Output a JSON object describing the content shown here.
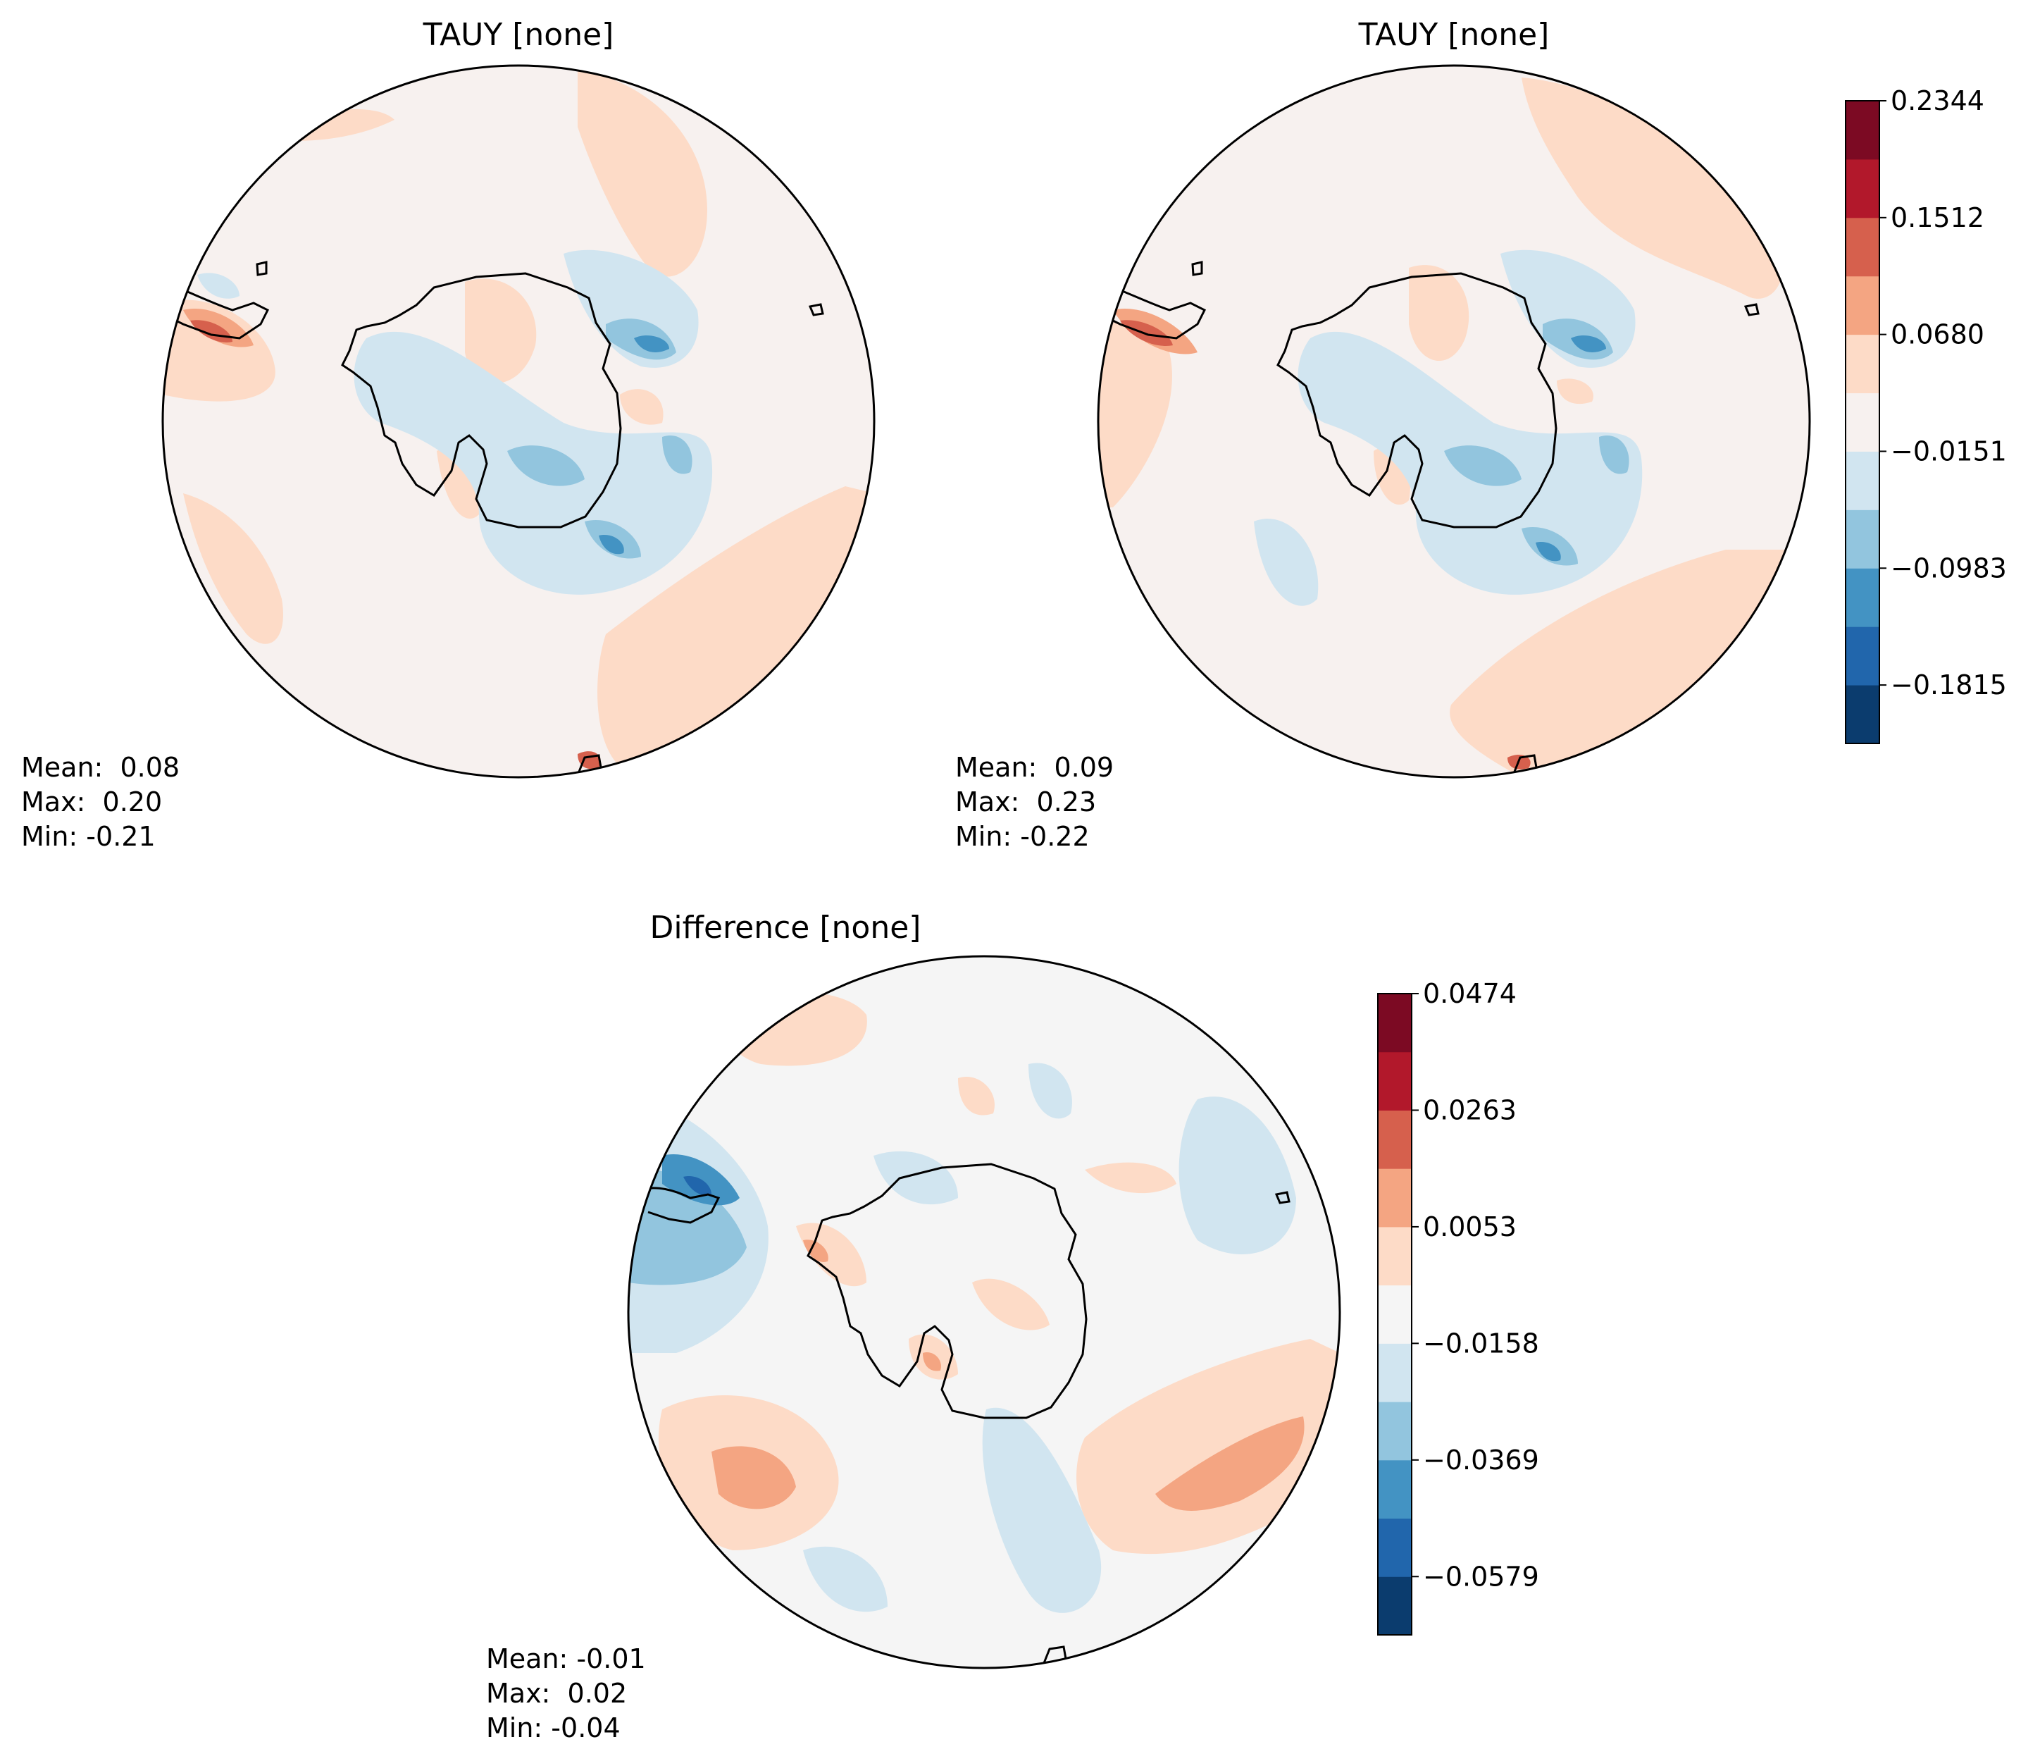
{
  "figure": {
    "panels": [
      {
        "id": "test",
        "title": "TAUY [none]",
        "stats": {
          "mean": "Mean:  0.08",
          "max": "Max:  0.20",
          "min": "Min: -0.21"
        }
      },
      {
        "id": "reference",
        "title": "TAUY [none]",
        "stats": {
          "mean": "Mean:  0.09",
          "max": "Max:  0.23",
          "min": "Min: -0.22"
        }
      },
      {
        "id": "difference",
        "title": "Difference [none]",
        "stats": {
          "mean": "Mean: -0.01",
          "max": "Max:  0.02",
          "min": "Min: -0.04"
        }
      }
    ],
    "colorbars": [
      {
        "id": "main",
        "ticks": [
          "0.2344",
          "0.1512",
          "0.0680",
          "−0.0151",
          "−0.0983",
          "−0.1815"
        ],
        "levels": 11,
        "colors": [
          "#0b3c6e",
          "#2166ac",
          "#4393c3",
          "#92c5de",
          "#d1e5f0",
          "#f7f1ef",
          "#fddbc7",
          "#f4a582",
          "#d6604d",
          "#b2182b",
          "#7c0a23"
        ]
      },
      {
        "id": "diff",
        "ticks": [
          "0.0474",
          "0.0263",
          "0.0053",
          "−0.0158",
          "−0.0369",
          "−0.0579"
        ],
        "levels": 11,
        "colors": [
          "#0b3c6e",
          "#2166ac",
          "#4393c3",
          "#92c5de",
          "#d1e5f0",
          "#f5f5f5",
          "#fddbc7",
          "#f4a582",
          "#d6604d",
          "#b2182b",
          "#7c0a23"
        ]
      }
    ]
  }
}
